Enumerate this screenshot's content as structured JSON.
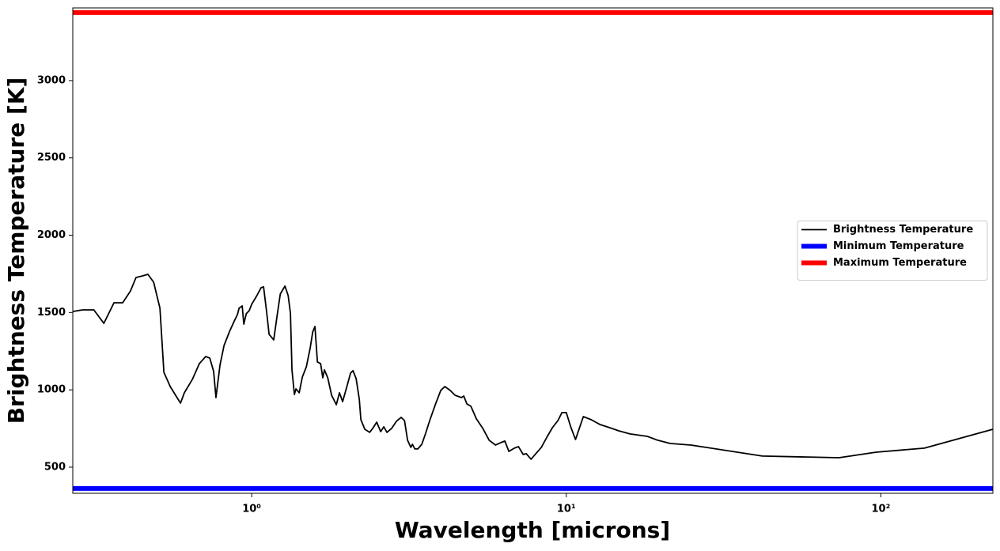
{
  "chart_data": {
    "type": "line",
    "xlabel": "Wavelength [microns]",
    "ylabel": "Brightness Temperature [K]",
    "xscale": "log",
    "xlim": [
      0.27,
      227
    ],
    "ylim": [
      331,
      3470
    ],
    "xticks": [
      {
        "value": 1,
        "label": "10⁰"
      },
      {
        "value": 10,
        "label": "10¹"
      },
      {
        "value": 100,
        "label": "10²"
      }
    ],
    "yticks": [
      500,
      1000,
      1500,
      2000,
      2500,
      3000
    ],
    "legend": "center right",
    "x": [
      0.27,
      0.29,
      0.315,
      0.339,
      0.365,
      0.389,
      0.412,
      0.429,
      0.45,
      0.468,
      0.488,
      0.511,
      0.526,
      0.551,
      0.573,
      0.594,
      0.611,
      0.648,
      0.682,
      0.715,
      0.736,
      0.757,
      0.77,
      0.793,
      0.817,
      0.851,
      0.881,
      0.901,
      0.912,
      0.933,
      0.944,
      0.961,
      0.982,
      1.0,
      1.035,
      1.072,
      1.091,
      1.116,
      1.136,
      1.175,
      1.204,
      1.233,
      1.276,
      1.306,
      1.328,
      1.343,
      1.367,
      1.383,
      1.416,
      1.449,
      1.492,
      1.535,
      1.563,
      1.589,
      1.618,
      1.656,
      1.683,
      1.703,
      1.745,
      1.795,
      1.858,
      1.901,
      1.946,
      2.004,
      2.062,
      2.099,
      2.148,
      2.198,
      2.224,
      2.289,
      2.371,
      2.426,
      2.497,
      2.57,
      2.63,
      2.692,
      2.786,
      2.885,
      2.987,
      3.06,
      3.13,
      3.205,
      3.243,
      3.3,
      3.374,
      3.474,
      3.574,
      3.681,
      3.834,
      3.99,
      4.11,
      4.277,
      4.432,
      4.643,
      4.723,
      4.831,
      4.975,
      5.18,
      5.428,
      5.687,
      5.958,
      6.2,
      6.38,
      6.57,
      6.84,
      7.046,
      7.295,
      7.464,
      7.727,
      8.0,
      8.332,
      8.677,
      9.039,
      9.414,
      9.687,
      10.0,
      10.33,
      10.7,
      11.33,
      12.0,
      12.79,
      13.71,
      14.69,
      15.94,
      18.11,
      19.53,
      21.42,
      24.91,
      41.97,
      73.6,
      96.6,
      137.5,
      227
    ],
    "series": [
      {
        "name": "Brightness Temperature",
        "color": "#000000",
        "values": [
          1507,
          1517,
          1517,
          1430,
          1563,
          1563,
          1640,
          1727,
          1737,
          1747,
          1696,
          1528,
          1113,
          1021,
          965,
          914,
          981,
          1068,
          1170,
          1216,
          1205,
          1119,
          950,
          1160,
          1287,
          1379,
          1446,
          1487,
          1528,
          1543,
          1425,
          1492,
          1512,
          1553,
          1604,
          1661,
          1666,
          1502,
          1359,
          1323,
          1476,
          1620,
          1671,
          1610,
          1497,
          1129,
          970,
          1006,
          981,
          1083,
          1149,
          1272,
          1374,
          1410,
          1180,
          1170,
          1078,
          1129,
          1078,
          965,
          904,
          981,
          924,
          1016,
          1108,
          1124,
          1073,
          940,
          807,
          745,
          725,
          751,
          791,
          730,
          761,
          725,
          751,
          797,
          822,
          802,
          674,
          628,
          648,
          618,
          618,
          648,
          720,
          802,
          904,
          996,
          1021,
          996,
          965,
          950,
          960,
          909,
          894,
          812,
          751,
          674,
          643,
          659,
          669,
          602,
          623,
          633,
          582,
          587,
          551,
          587,
          628,
          694,
          756,
          802,
          853,
          853,
          761,
          679,
          827,
          807,
          776,
          756,
          735,
          715,
          699,
          674,
          653,
          643,
          572,
          561,
          597,
          623,
          745
        ]
      }
    ],
    "hlines": [
      {
        "name": "Minimum Temperature",
        "color": "#0000ff",
        "value": 362
      },
      {
        "name": "Maximum Temperature",
        "color": "#ff0000",
        "value": 3440
      }
    ]
  }
}
